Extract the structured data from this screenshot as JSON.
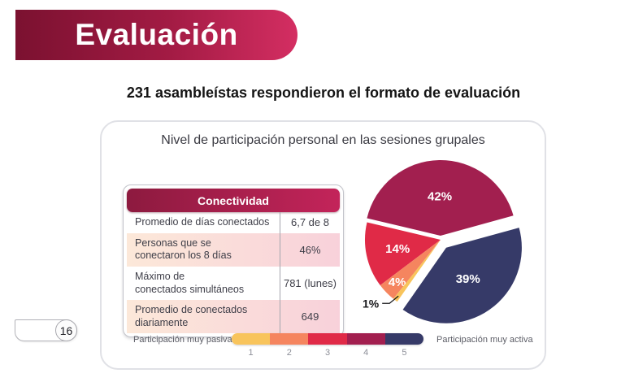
{
  "slide": {
    "title": "Evaluación",
    "subtitle": "231 asambleístas respondieron el formato de evaluación",
    "page_number": "16"
  },
  "card": {
    "title": "Nivel de participación personal en las sesiones grupales"
  },
  "table": {
    "header": "Conectividad",
    "rows": [
      {
        "label": "Promedio de días conectados",
        "value": "6,7 de 8",
        "highlight": false
      },
      {
        "label": "Personas que se\nconectaron los 8 días",
        "value": "46%",
        "highlight": true
      },
      {
        "label": "Máximo de\nconectados simultáneos",
        "value": "781 (lunes)",
        "highlight": false
      },
      {
        "label": "Promedio de conectados\ndiariamente",
        "value": "649",
        "highlight": true
      }
    ]
  },
  "chart_data": {
    "type": "pie",
    "title": "Nivel de participación personal en las sesiones grupales",
    "categories": [
      "1",
      "2",
      "3",
      "4",
      "5"
    ],
    "values": [
      1,
      4,
      14,
      42,
      39
    ],
    "unit": "%",
    "start_angle_deg": 15.4,
    "slices_draw_order": [
      {
        "category": "4",
        "value": 42,
        "label": "42%",
        "color": "#A21F4F",
        "explode": 5,
        "label_r": 0.52
      },
      {
        "category": "3",
        "value": 14,
        "label": "14%",
        "color": "#E02A47",
        "explode": 0,
        "label_r": 0.58
      },
      {
        "category": "2",
        "value": 4,
        "label": "4%",
        "color": "#F5855F",
        "explode": 0,
        "label_r": 0.8
      },
      {
        "category": "1",
        "value": 1,
        "label": "1%",
        "color": "#F8C45C",
        "explode": 0,
        "label_outside": true
      },
      {
        "category": "5",
        "value": 39,
        "label": "39%",
        "color": "#363A68",
        "explode": 12,
        "label_r": 0.5
      }
    ],
    "legend": {
      "left_label": "Participación muy pasiva",
      "right_label": "Participación muy activa",
      "scale": [
        "1",
        "2",
        "3",
        "4",
        "5"
      ],
      "scale_colors": [
        "#F8C45C",
        "#F5855F",
        "#E02A47",
        "#A21F4F",
        "#363A68"
      ]
    }
  },
  "theme": {
    "banner_gradient_start": "#7B1130",
    "banner_gradient_end": "#D42E62",
    "table_header_gradient_start": "#8D1A3F",
    "table_header_gradient_end": "#C3245A",
    "highlight_row_gradient_start": "#FCE8D9",
    "highlight_row_gradient_end": "#F8D1DA"
  }
}
